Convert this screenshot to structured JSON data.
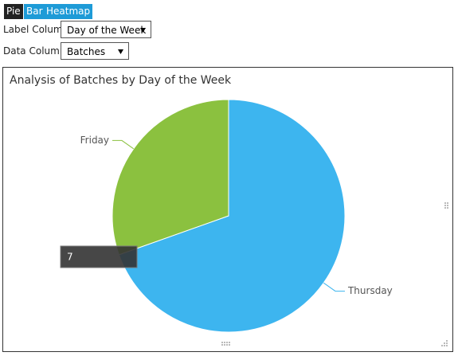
{
  "toolbar": {
    "buttons": [
      "Pie",
      "Bar",
      "Heatmap"
    ]
  },
  "label_column": {
    "label": "Label Column",
    "value": "Day of the Week"
  },
  "data_column": {
    "label": "Data Column",
    "value": "Batches"
  },
  "chart_data": {
    "type": "pie",
    "title": "Analysis of Batches by Day of the Week",
    "categories": [
      "Thursday",
      "Friday"
    ],
    "values": [
      16,
      7
    ],
    "colors": [
      "#3db5ef",
      "#8bc13f"
    ]
  }
}
